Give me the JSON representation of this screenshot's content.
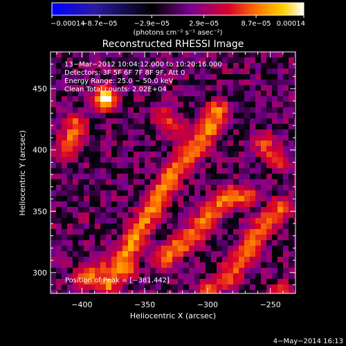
{
  "chart_data": {
    "type": "heatmap",
    "title": "Reconstructed RHESSI Image",
    "xlabel": "Heliocentric X (arcsec)",
    "ylabel": "Heliocentric Y (arcsec)",
    "xlim": [
      -425,
      -230
    ],
    "ylim": [
      283,
      480
    ],
    "xticks": [
      {
        "value": -400,
        "label": "−400"
      },
      {
        "value": -350,
        "label": "−350"
      },
      {
        "value": -300,
        "label": "−300"
      },
      {
        "value": -250,
        "label": "−250"
      }
    ],
    "yticks": [
      {
        "value": 300,
        "label": "300"
      },
      {
        "value": 350,
        "label": "350"
      },
      {
        "value": 400,
        "label": "400"
      },
      {
        "value": 450,
        "label": "450"
      }
    ],
    "colorbar": {
      "min": -0.00014,
      "max": 0.00014,
      "ticks": [
        {
          "value": -0.00014,
          "label": "−0.00014"
        },
        {
          "value": -8.7e-05,
          "label": "−8.7e−05"
        },
        {
          "value": -2.9e-05,
          "label": "−2.9e−05"
        },
        {
          "value": 2.9e-05,
          "label": "2.9e−05"
        },
        {
          "value": 8.7e-05,
          "label": "8.7e−05"
        },
        {
          "value": 0.00014,
          "label": "0.00014"
        }
      ],
      "unit_label": "(photons cm⁻² s⁻¹ asec⁻²)",
      "colors": [
        "#0000ff",
        "#3a1a8a",
        "#000000",
        "#7a0090",
        "#d8002a",
        "#ff7a00",
        "#ffd000",
        "#ffffff"
      ]
    },
    "annotations": [
      "13−Mar−2012 10:04:12.000 to 10:20:16.000",
      "Detectors: 3F 5F 6F 7F 8F 9F, Att 0",
      "Energy Range: 25.0 − 50.0 keV",
      "Clean    Total counts: 2.02E+04"
    ],
    "peak_label": "Position of Peak = [−381,442]",
    "peak": [
      -381,
      442
    ],
    "date_stamp": "4−May−2014 16:13",
    "features": [
      {
        "kind": "ribbon",
        "points": [
          [
            -380,
            290
          ],
          [
            -365,
            315
          ],
          [
            -350,
            342
          ],
          [
            -337,
            365
          ],
          [
            -325,
            385
          ],
          [
            -313,
            398
          ],
          [
            -303,
            410
          ],
          [
            -292,
            432
          ]
        ],
        "level": 0.6
      },
      {
        "kind": "arc",
        "points": [
          [
            -335,
            312
          ],
          [
            -322,
            322
          ],
          [
            -310,
            332
          ],
          [
            -296,
            350
          ],
          [
            -282,
            362
          ],
          [
            -270,
            362
          ]
        ],
        "level": 0.55
      },
      {
        "kind": "arc",
        "points": [
          [
            -285,
            295
          ],
          [
            -270,
            315
          ],
          [
            -258,
            335
          ],
          [
            -243,
            352
          ]
        ],
        "level": 0.5
      },
      {
        "kind": "blob",
        "points": [
          [
            -381,
            442
          ]
        ],
        "level": 1.0
      },
      {
        "kind": "blob",
        "points": [
          [
            -405,
            420
          ],
          [
            -412,
            400
          ]
        ],
        "level": 0.5
      },
      {
        "kind": "blob",
        "points": [
          [
            -398,
            295
          ],
          [
            -385,
            300
          ],
          [
            -365,
            302
          ]
        ],
        "level": 0.55
      },
      {
        "kind": "blob",
        "points": [
          [
            -245,
            392
          ],
          [
            -255,
            405
          ]
        ],
        "level": 0.4
      },
      {
        "kind": "blob",
        "points": [
          [
            -335,
            428
          ],
          [
            -325,
            418
          ]
        ],
        "level": 0.35
      },
      {
        "kind": "blob",
        "points": [
          [
            -300,
            285
          ]
        ],
        "level": 0.45
      },
      {
        "kind": "blob",
        "points": [
          [
            -240,
            283
          ]
        ],
        "level": 0.5
      }
    ]
  }
}
